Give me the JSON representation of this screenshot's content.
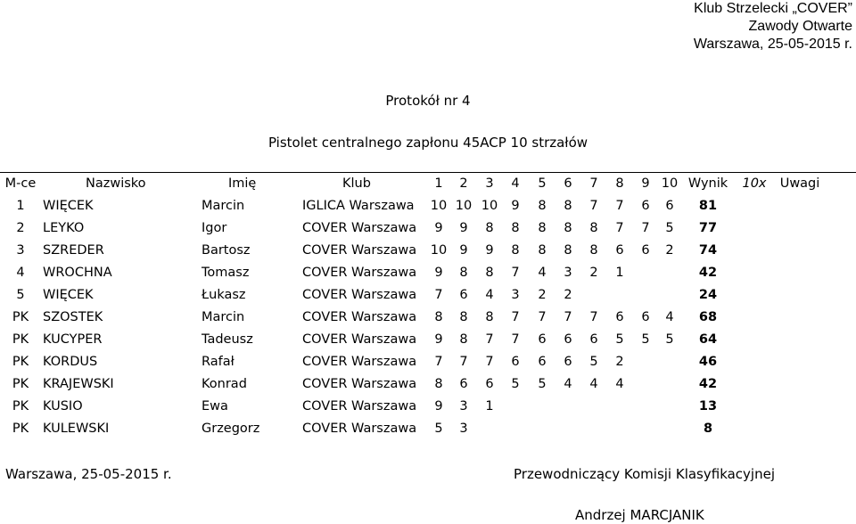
{
  "header": {
    "club": "Klub Strzelecki „COVER”",
    "event": "Zawody Otwarte",
    "place_date": "Warszawa, 25-05-2015 r."
  },
  "protocol_title": "Protokół nr 4",
  "competition": "Pistolet centralnego zapłonu 45ACP 10 strzałów",
  "table": {
    "headers": {
      "mce": "M-ce",
      "nazwisko": "Nazwisko",
      "imie": "Imię",
      "klub": "Klub",
      "shots": [
        "1",
        "2",
        "3",
        "4",
        "5",
        "6",
        "7",
        "8",
        "9",
        "10"
      ],
      "wynik": "Wynik",
      "x10": "10x",
      "uwagi": "Uwagi"
    },
    "rows": [
      {
        "mce": "1",
        "nazwisko": "WIĘCEK",
        "imie": "Marcin",
        "klub": "IGLICA Warszawa",
        "shots": [
          "10",
          "10",
          "10",
          "9",
          "8",
          "8",
          "7",
          "7",
          "6",
          "6"
        ],
        "wynik": "81"
      },
      {
        "mce": "2",
        "nazwisko": "LEYKO",
        "imie": "Igor",
        "klub": "COVER Warszawa",
        "shots": [
          "9",
          "9",
          "8",
          "8",
          "8",
          "8",
          "8",
          "7",
          "7",
          "5"
        ],
        "wynik": "77"
      },
      {
        "mce": "3",
        "nazwisko": "SZREDER",
        "imie": "Bartosz",
        "klub": "COVER Warszawa",
        "shots": [
          "10",
          "9",
          "9",
          "8",
          "8",
          "8",
          "8",
          "6",
          "6",
          "2"
        ],
        "wynik": "74"
      },
      {
        "mce": "4",
        "nazwisko": "WROCHNA",
        "imie": "Tomasz",
        "klub": "COVER Warszawa",
        "shots": [
          "9",
          "8",
          "8",
          "7",
          "4",
          "3",
          "2",
          "1",
          "",
          ""
        ],
        "wynik": "42"
      },
      {
        "mce": "5",
        "nazwisko": "WIĘCEK",
        "imie": "Łukasz",
        "klub": "COVER Warszawa",
        "shots": [
          "7",
          "6",
          "4",
          "3",
          "2",
          "2",
          "",
          "",
          "",
          ""
        ],
        "wynik": "24"
      },
      {
        "mce": "PK",
        "nazwisko": "SZOSTEK",
        "imie": "Marcin",
        "klub": "COVER Warszawa",
        "shots": [
          "8",
          "8",
          "8",
          "7",
          "7",
          "7",
          "7",
          "6",
          "6",
          "4"
        ],
        "wynik": "68"
      },
      {
        "mce": "PK",
        "nazwisko": "KUCYPER",
        "imie": "Tadeusz",
        "klub": "COVER Warszawa",
        "shots": [
          "9",
          "8",
          "7",
          "7",
          "6",
          "6",
          "6",
          "5",
          "5",
          "5"
        ],
        "wynik": "64"
      },
      {
        "mce": "PK",
        "nazwisko": "KORDUS",
        "imie": "Rafał",
        "klub": "COVER Warszawa",
        "shots": [
          "7",
          "7",
          "7",
          "6",
          "6",
          "6",
          "5",
          "2",
          "",
          ""
        ],
        "wynik": "46"
      },
      {
        "mce": "PK",
        "nazwisko": "KRAJEWSKI",
        "imie": "Konrad",
        "klub": "COVER Warszawa",
        "shots": [
          "8",
          "6",
          "6",
          "5",
          "5",
          "4",
          "4",
          "4",
          "",
          ""
        ],
        "wynik": "42"
      },
      {
        "mce": "PK",
        "nazwisko": "KUSIO",
        "imie": "Ewa",
        "klub": "COVER Warszawa",
        "shots": [
          "9",
          "3",
          "1",
          "",
          "",
          "",
          "",
          "",
          "",
          ""
        ],
        "wynik": "13"
      },
      {
        "mce": "PK",
        "nazwisko": "KULEWSKI",
        "imie": "Grzegorz",
        "klub": "COVER Warszawa",
        "shots": [
          "5",
          "3",
          "",
          "",
          "",
          "",
          "",
          "",
          "",
          ""
        ],
        "wynik": "8"
      }
    ]
  },
  "footer": {
    "place_date": "Warszawa, 25-05-2015 r.",
    "chair_title": "Przewodniczący Komisji Klasyfikacyjnej",
    "chair_name": "Andrzej MARCJANIK"
  }
}
